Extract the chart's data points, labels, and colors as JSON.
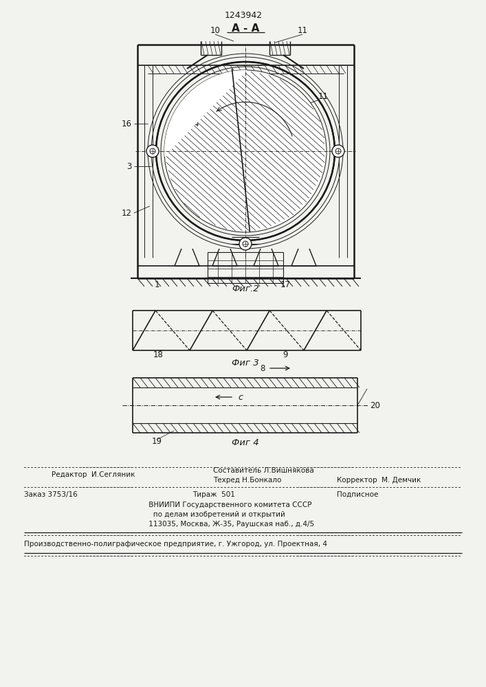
{
  "patent_number": "1243942",
  "fig2_label": "Фиг.2",
  "fig3_label": "Фиг 3",
  "fig4_label": "Фиг 4",
  "bg_color": "#f2f2ee",
  "line_color": "#1a1a1a",
  "footer_line1_left": "Редактор  И.Сегляник",
  "footer_line1_center": "Составитель Л.Вишнякова",
  "footer_line2_center": "Техред Н.Бонкало",
  "footer_line2_right": "Корректор  М. Демчик",
  "footer_line3_left": "Заказ 3753/16",
  "footer_line3_center": "Тираж  501",
  "footer_line3_right": "Подписное",
  "footer_vnipi": "     ВНИИПИ Государственного комитета СССР",
  "footer_vnipi2": "       по делам изобретений и открытий",
  "footer_vnipi3": "     113035, Москва, Ж-35, Раушская наб., д.4/5",
  "footer_last": "Производственно-полиграфическое предприятие, г. Ужгород, ул. Проектная, 4"
}
